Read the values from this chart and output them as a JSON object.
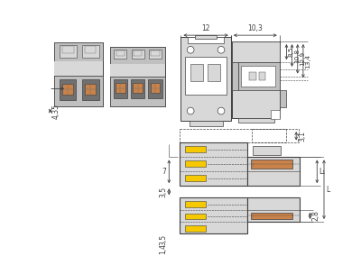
{
  "bg_color": "#ffffff",
  "line_color": "#404040",
  "gray_fill": "#c0c0c0",
  "light_gray": "#d8d8d8",
  "mid_gray": "#a0a0a0",
  "dark_gray": "#707070",
  "yellow_color": "#f5c800",
  "copper_color": "#c8824a",
  "dim_color": "#404040",
  "fig_w": 4.0,
  "fig_h": 2.94,
  "dpi": 100
}
